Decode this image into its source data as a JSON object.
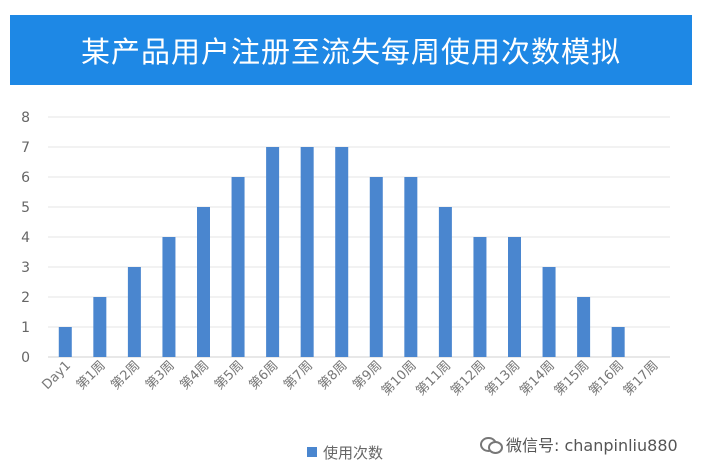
{
  "chart_data": {
    "type": "bar",
    "title": "某产品用户注册至流失每周使用次数模拟",
    "categories": [
      "Day1",
      "第1周",
      "第2周",
      "第3周",
      "第4周",
      "第5周",
      "第6周",
      "第7周",
      "第8周",
      "第9周",
      "第10周",
      "第11周",
      "第12周",
      "第13周",
      "第14周",
      "第15周",
      "第16周",
      "第17周"
    ],
    "series": [
      {
        "name": "使用次数",
        "values": [
          1,
          2,
          3,
          4,
          5,
          6,
          7,
          7,
          7,
          6,
          6,
          5,
          4,
          4,
          3,
          2,
          1,
          0
        ],
        "color": "#4a86cf"
      }
    ],
    "ylim": [
      0,
      8
    ],
    "yticks": [
      0,
      1,
      2,
      3,
      4,
      5,
      6,
      7,
      8
    ],
    "grid": true,
    "legend": "bottom-center"
  },
  "watermark": {
    "icon": "wechat-icon",
    "text": "微信号: chanpinliu880"
  }
}
